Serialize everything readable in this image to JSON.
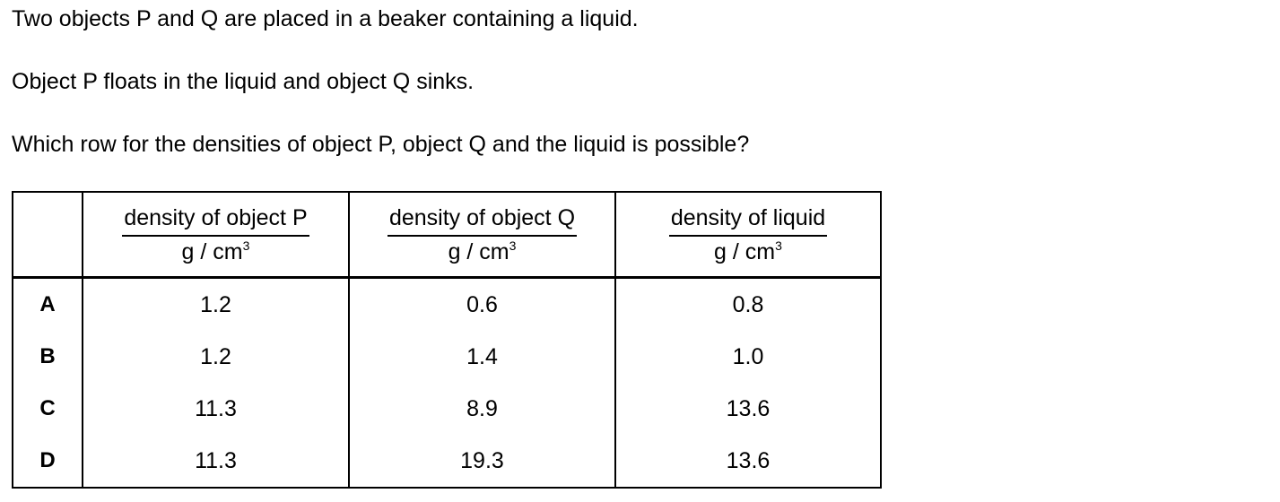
{
  "question": {
    "line1": "Two objects P and Q are placed in a beaker containing a liquid.",
    "line2": "Object P floats in the liquid and object Q sinks.",
    "line3": "Which row for the densities of object P, object Q and the liquid is possible?"
  },
  "table": {
    "headers": [
      {
        "name": "density of object P",
        "unit": "g / cm",
        "unit_sup": "3"
      },
      {
        "name": "density of object Q",
        "unit": "g / cm",
        "unit_sup": "3"
      },
      {
        "name": "density of liquid",
        "unit": "g / cm",
        "unit_sup": "3"
      }
    ],
    "rows": [
      {
        "letter": "A",
        "p": "1.2",
        "q": "0.6",
        "liquid": "0.8"
      },
      {
        "letter": "B",
        "p": "1.2",
        "q": "1.4",
        "liquid": "1.0"
      },
      {
        "letter": "C",
        "p": "11.3",
        "q": "8.9",
        "liquid": "13.6"
      },
      {
        "letter": "D",
        "p": "11.3",
        "q": "19.3",
        "liquid": "13.6"
      }
    ]
  }
}
